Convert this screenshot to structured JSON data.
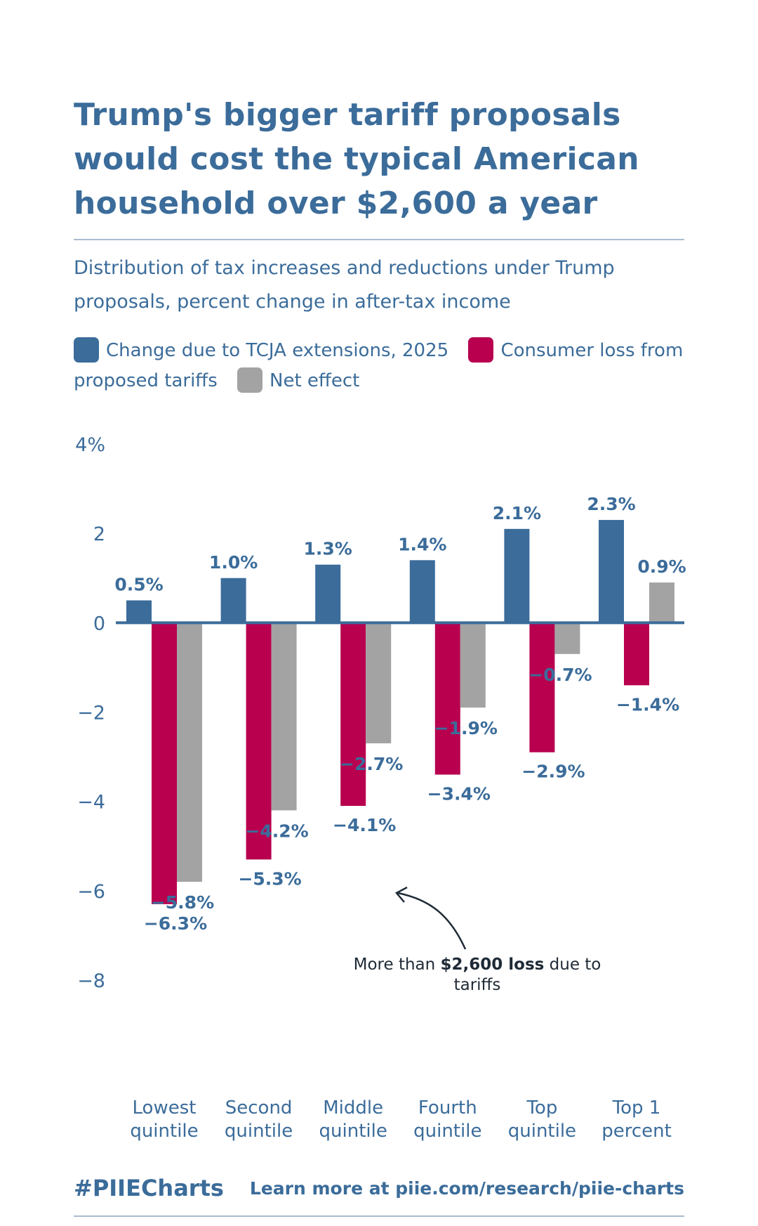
{
  "title": "Trump's bigger tariff proposals would cost the typical American household over $2,600 a year",
  "subtitle": "Distribution of tax increases and reductions under Trump proposals, percent change in after-tax income",
  "legend": [
    {
      "label": "Change due to TCJA extensions, 2025",
      "color": "#3b6c9a"
    },
    {
      "label": "Consumer loss from proposed tariffs",
      "color": "#b8004f"
    },
    {
      "label": "Net effect",
      "color": "#a3a3a3"
    }
  ],
  "annotation": {
    "prefix": "More than ",
    "bold": "$2,600 loss",
    "suffix": " due to",
    "line2": "tariffs"
  },
  "footer": {
    "hashtag": "#PIIECharts",
    "link": "Learn more at piie.com/research/piie-charts"
  },
  "chart_data": {
    "type": "bar",
    "categories": [
      [
        "Lowest",
        "quintile"
      ],
      [
        "Second",
        "quintile"
      ],
      [
        "Middle",
        "quintile"
      ],
      [
        "Fourth",
        "quintile"
      ],
      [
        "Top",
        "quintile"
      ],
      [
        "Top 1",
        "percent"
      ]
    ],
    "series": [
      {
        "name": "Change due to TCJA extensions, 2025",
        "color": "#3b6c9a",
        "values": [
          0.5,
          1.0,
          1.3,
          1.4,
          2.1,
          2.3
        ],
        "labels": [
          "0.5%",
          "1.0%",
          "1.3%",
          "1.4%",
          "2.1%",
          "2.3%"
        ]
      },
      {
        "name": "Consumer loss from proposed tariffs",
        "color": "#b8004f",
        "values": [
          -6.3,
          -5.3,
          -4.1,
          -3.4,
          -2.9,
          -1.4
        ],
        "labels": [
          "−6.3%",
          "−5.3%",
          "−4.1%",
          "−3.4%",
          "−2.9%",
          "−1.4%"
        ]
      },
      {
        "name": "Net effect",
        "color": "#a3a3a3",
        "values": [
          -5.8,
          -4.2,
          -2.7,
          -1.9,
          -0.7,
          0.9
        ],
        "labels": [
          "−5.8%",
          "−4.2%",
          "−2.7%",
          "−1.9%",
          "−0.7%",
          "0.9%"
        ]
      }
    ],
    "ylim": [
      -8,
      4
    ],
    "yticks": [
      4,
      2,
      0,
      -2,
      -4,
      -6,
      -8
    ],
    "ytick_labels": [
      "4%",
      "2",
      "0",
      "−2",
      "−4",
      "−6",
      "−8"
    ],
    "grid": false,
    "legend_position": "top"
  }
}
